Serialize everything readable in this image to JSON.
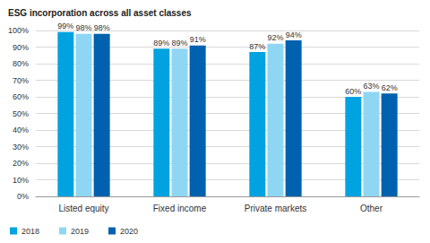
{
  "chart_data": {
    "type": "bar",
    "title": "ESG incorporation across all asset classes",
    "categories": [
      "Listed equity",
      "Fixed income",
      "Private markets",
      "Other"
    ],
    "series": [
      {
        "name": "2018",
        "color": "#00a3e0",
        "values": [
          99,
          89,
          87,
          60
        ],
        "value_labels": [
          "99%",
          "89%",
          "87%",
          "60%"
        ]
      },
      {
        "name": "2019",
        "color": "#8fd6f5",
        "values": [
          98,
          89,
          92,
          63
        ],
        "value_labels": [
          "98%",
          "89%",
          "92%",
          "63%"
        ]
      },
      {
        "name": "2020",
        "color": "#0061ae",
        "values": [
          98,
          91,
          94,
          62
        ],
        "value_labels": [
          "98%",
          "91%",
          "94%",
          "62%"
        ]
      }
    ],
    "ylim": [
      0,
      100
    ],
    "yticks": [
      {
        "value": 0,
        "label": "0%"
      },
      {
        "value": 10,
        "label": "10%"
      },
      {
        "value": 20,
        "label": "20%"
      },
      {
        "value": 30,
        "label": "30%"
      },
      {
        "value": 40,
        "label": "40%"
      },
      {
        "value": 50,
        "label": "50%"
      },
      {
        "value": 60,
        "label": "60%"
      },
      {
        "value": 70,
        "label": "70%"
      },
      {
        "value": 80,
        "label": "80%"
      },
      {
        "value": 90,
        "label": "90%"
      },
      {
        "value": 100,
        "label": "100%"
      }
    ],
    "grid": true,
    "legend": "bottom-left",
    "data_labels": true
  }
}
